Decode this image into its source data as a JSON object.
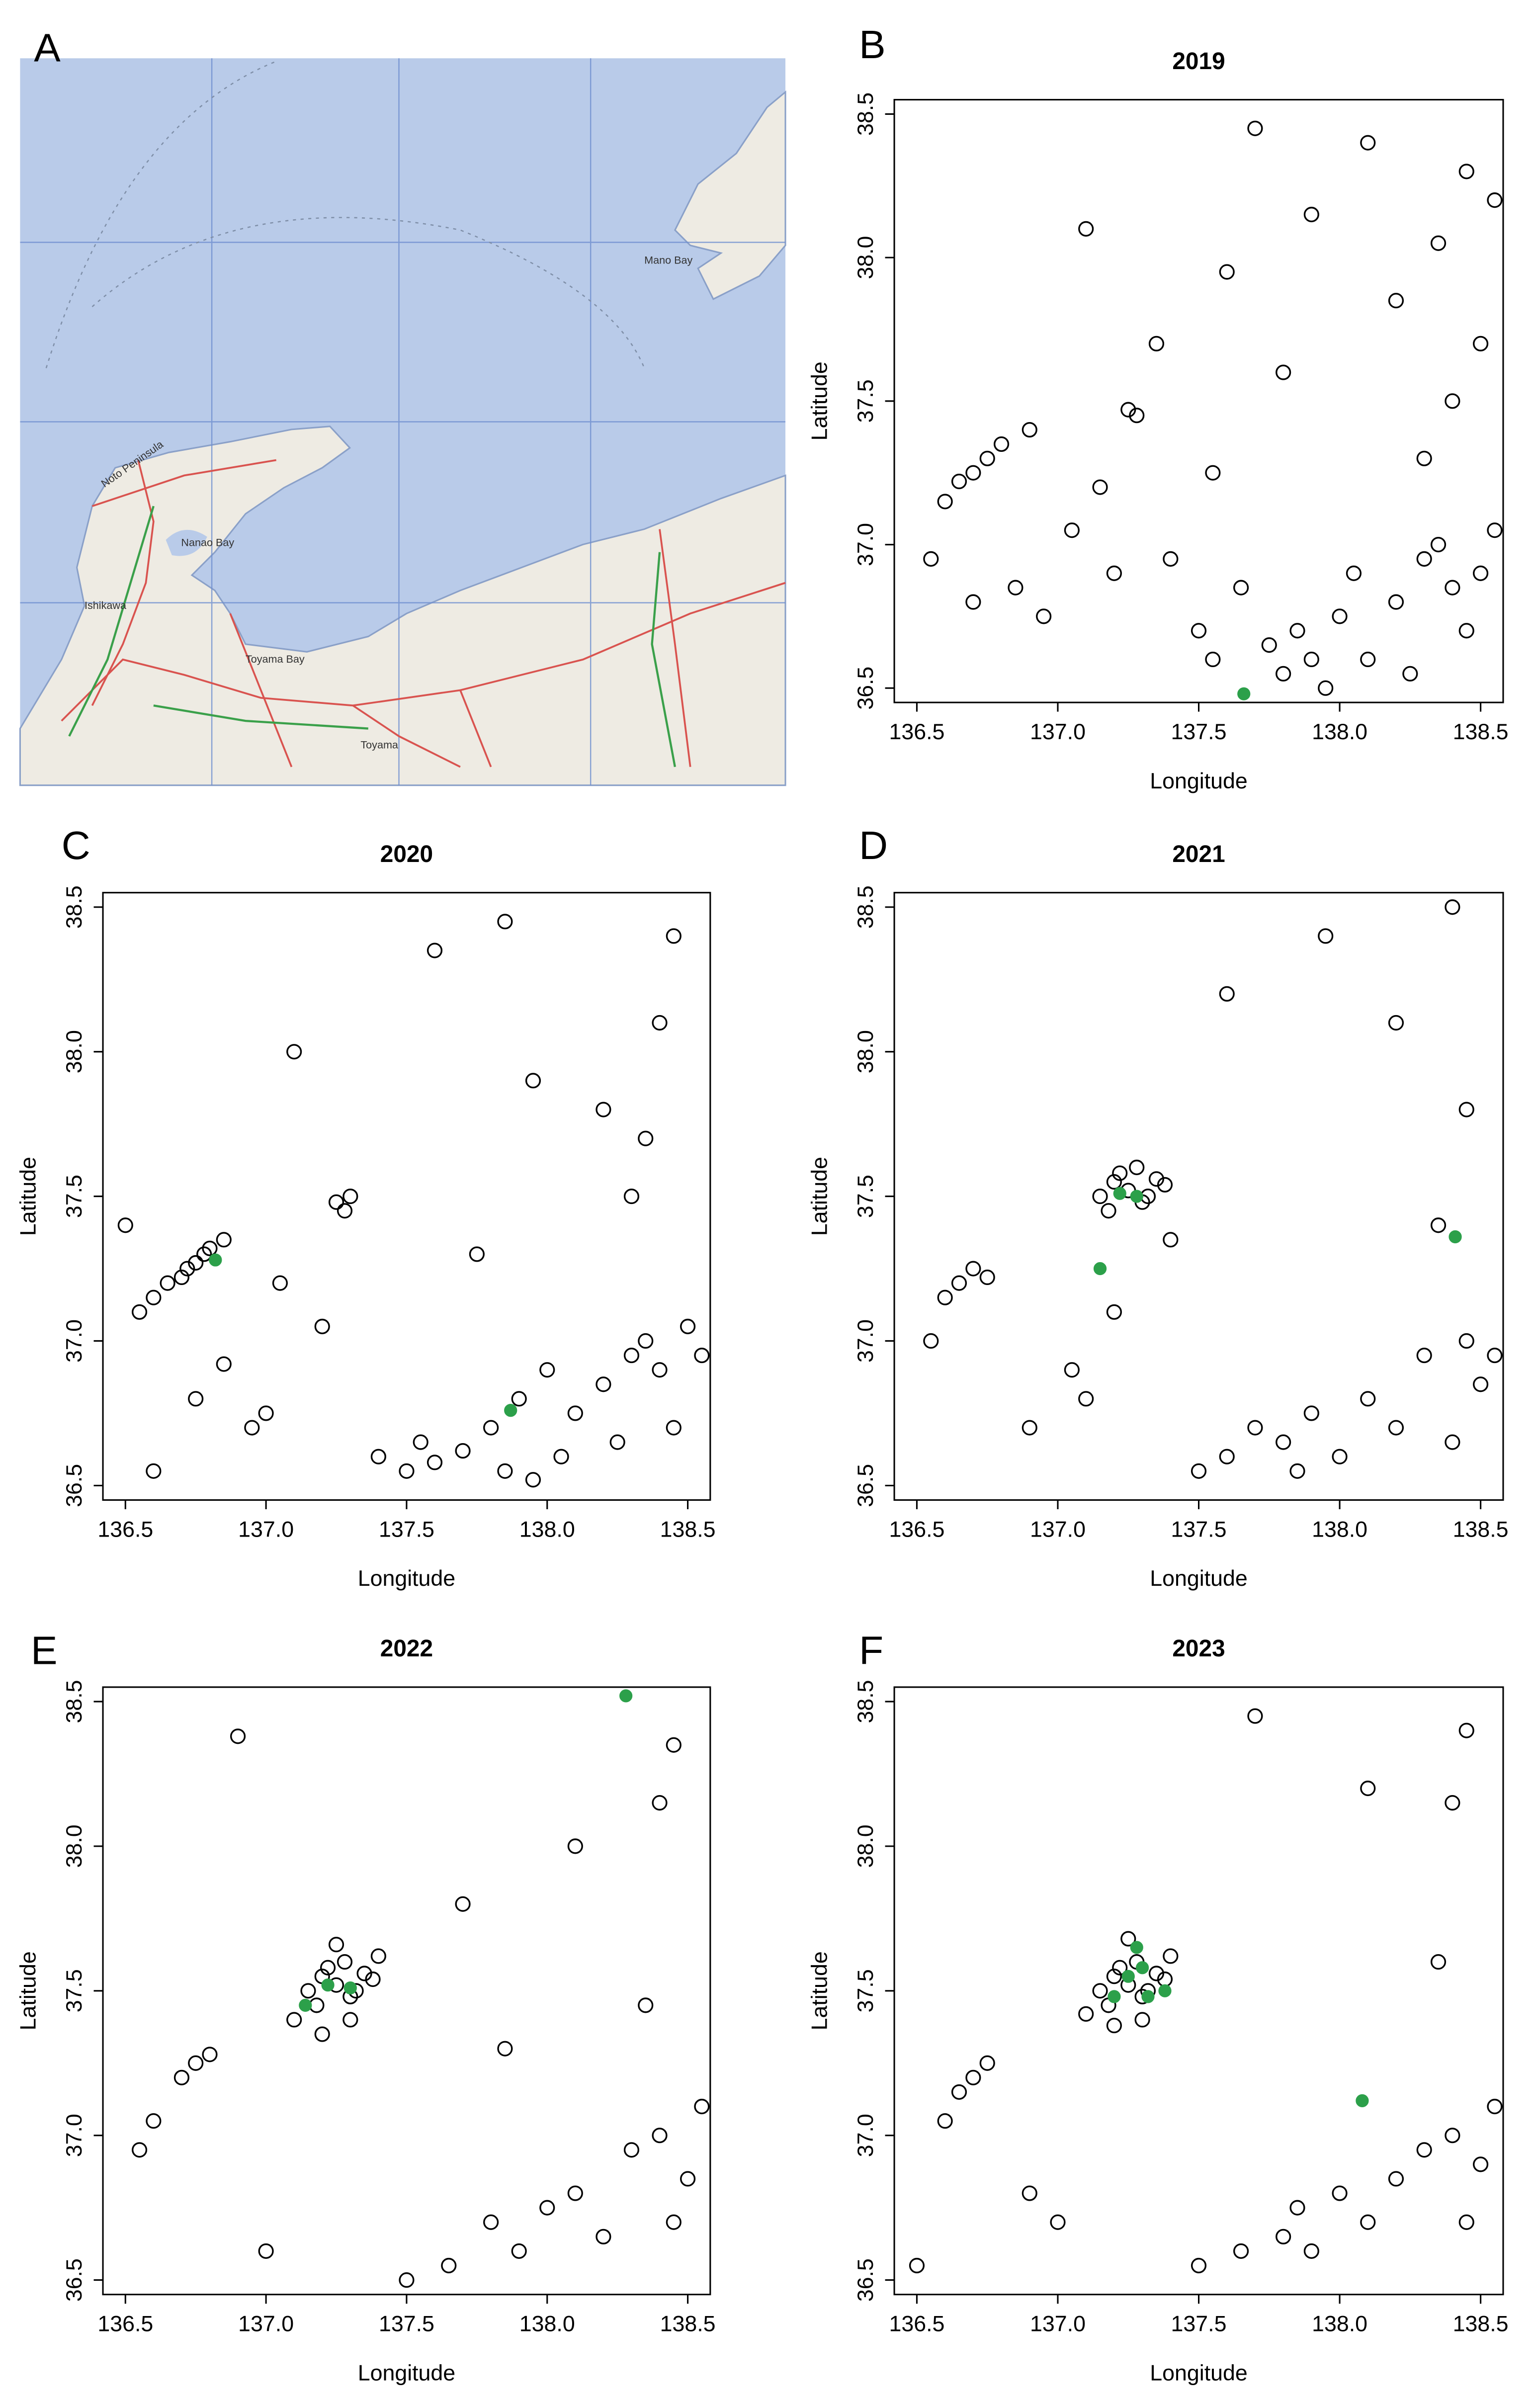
{
  "panel_labels": [
    "A",
    "B",
    "C",
    "D",
    "E",
    "F"
  ],
  "map": {
    "labels": [
      "Noto Peninsula",
      "Nanao Bay",
      "Ishikawa",
      "Toyama Bay",
      "Toyama",
      "Mano Bay"
    ]
  },
  "chart_data": [
    {
      "type": "scatter",
      "title": "2019",
      "xlabel": "Longitude",
      "ylabel": "Latitude",
      "xlim": [
        136.42,
        138.58
      ],
      "ylim": [
        36.45,
        38.55
      ],
      "xticks": [
        136.5,
        {
          "value": 137,
          "label": "137.0"
        },
        137.5,
        {
          "value": 138,
          "label": "138.0"
        },
        138.5
      ],
      "yticks": [
        36.5,
        {
          "value": 37,
          "label": "37.0"
        },
        37.5,
        {
          "value": 38,
          "label": "38.0"
        },
        38.5
      ],
      "series": [
        {
          "color": "#000000",
          "marker": "open",
          "x": [
            136.6,
            136.65,
            136.7,
            136.75,
            136.8,
            136.55,
            136.7,
            136.85,
            136.95,
            137.05,
            137.15,
            137.25,
            137.28,
            137.35,
            137.2,
            137.4,
            137.5,
            137.55,
            137.65,
            137.75,
            137.8,
            137.85,
            137.9,
            137.95,
            138.0,
            138.05,
            138.1,
            138.2,
            138.25,
            138.3,
            138.35,
            138.4,
            138.45,
            138.5,
            138.55,
            138.3,
            138.4,
            138.5,
            138.2,
            138.35,
            138.45,
            138.55,
            138.1,
            137.9,
            137.7,
            137.6,
            137.8,
            137.55,
            136.9,
            137.1
          ],
          "values": [
            37.15,
            37.22,
            37.25,
            37.3,
            37.35,
            36.95,
            36.8,
            36.85,
            36.75,
            37.05,
            37.2,
            37.47,
            37.45,
            37.7,
            36.9,
            36.95,
            36.7,
            36.6,
            36.85,
            36.65,
            36.55,
            36.7,
            36.6,
            36.5,
            36.75,
            36.9,
            36.6,
            36.8,
            36.55,
            36.95,
            37.0,
            36.85,
            36.7,
            36.9,
            37.05,
            37.3,
            37.5,
            37.7,
            37.85,
            38.05,
            38.3,
            38.2,
            38.4,
            38.15,
            38.45,
            37.95,
            37.6,
            37.25,
            37.4,
            38.1
          ]
        },
        {
          "color": "#2ca04a",
          "marker": "filled",
          "x": [
            137.66
          ],
          "values": [
            36.48
          ]
        }
      ]
    },
    {
      "type": "scatter",
      "title": "2020",
      "xlabel": "Longitude",
      "ylabel": "Latitude",
      "xlim": [
        136.42,
        138.58
      ],
      "ylim": [
        36.45,
        38.55
      ],
      "xticks": [
        136.5,
        {
          "value": 137,
          "label": "137.0"
        },
        137.5,
        {
          "value": 138,
          "label": "138.0"
        },
        138.5
      ],
      "yticks": [
        36.5,
        {
          "value": 37,
          "label": "37.0"
        },
        37.5,
        {
          "value": 38,
          "label": "38.0"
        },
        38.5
      ],
      "series": [
        {
          "color": "#000000",
          "marker": "open",
          "x": [
            136.55,
            136.6,
            136.65,
            136.7,
            136.72,
            136.75,
            136.78,
            136.8,
            136.85,
            136.6,
            136.75,
            136.95,
            137.0,
            137.05,
            137.2,
            137.25,
            137.28,
            137.3,
            137.4,
            137.5,
            137.55,
            137.6,
            137.7,
            137.75,
            137.8,
            137.85,
            137.9,
            137.95,
            138.0,
            138.05,
            138.1,
            138.2,
            138.25,
            138.3,
            138.35,
            138.4,
            138.45,
            138.5,
            138.55,
            138.35,
            138.4,
            138.45,
            138.2,
            137.85,
            137.6,
            137.95,
            138.3,
            136.5,
            137.1,
            136.85
          ],
          "values": [
            37.1,
            37.15,
            37.2,
            37.22,
            37.25,
            37.27,
            37.3,
            37.32,
            37.35,
            36.55,
            36.8,
            36.7,
            36.75,
            37.2,
            37.05,
            37.48,
            37.45,
            37.5,
            36.6,
            36.55,
            36.65,
            36.58,
            36.62,
            37.3,
            36.7,
            36.55,
            36.8,
            36.52,
            36.9,
            36.6,
            36.75,
            36.85,
            36.65,
            36.95,
            37.0,
            36.9,
            36.7,
            37.05,
            36.95,
            37.7,
            38.1,
            38.4,
            37.8,
            38.45,
            38.35,
            37.9,
            37.5,
            37.4,
            38.0,
            36.92
          ]
        },
        {
          "color": "#2ca04a",
          "marker": "filled",
          "x": [
            136.82,
            137.87
          ],
          "values": [
            37.28,
            36.76
          ]
        }
      ]
    },
    {
      "type": "scatter",
      "title": "2021",
      "xlabel": "Longitude",
      "ylabel": "Latitude",
      "xlim": [
        136.42,
        138.58
      ],
      "ylim": [
        36.45,
        38.55
      ],
      "xticks": [
        136.5,
        {
          "value": 137,
          "label": "137.0"
        },
        137.5,
        {
          "value": 138,
          "label": "138.0"
        },
        138.5
      ],
      "yticks": [
        36.5,
        {
          "value": 37,
          "label": "37.0"
        },
        37.5,
        {
          "value": 38,
          "label": "38.0"
        },
        38.5
      ],
      "series": [
        {
          "color": "#000000",
          "marker": "open",
          "x": [
            137.15,
            137.2,
            137.25,
            137.3,
            137.35,
            137.18,
            137.22,
            137.28,
            137.32,
            137.38,
            136.6,
            136.65,
            136.7,
            136.75,
            136.55,
            137.05,
            137.1,
            137.2,
            137.4,
            137.5,
            137.6,
            137.7,
            137.8,
            137.85,
            137.9,
            138.0,
            138.1,
            138.2,
            138.3,
            138.4,
            138.45,
            138.5,
            138.55,
            138.35,
            138.45,
            138.2,
            137.95,
            137.6,
            138.4,
            136.9
          ],
          "values": [
            37.5,
            37.55,
            37.52,
            37.48,
            37.56,
            37.45,
            37.58,
            37.6,
            37.5,
            37.54,
            37.15,
            37.2,
            37.25,
            37.22,
            37.0,
            36.9,
            36.8,
            37.1,
            37.35,
            36.55,
            36.6,
            36.7,
            36.65,
            36.55,
            36.75,
            36.6,
            36.8,
            36.7,
            36.95,
            36.65,
            37.0,
            36.85,
            36.95,
            37.4,
            37.8,
            38.1,
            38.4,
            38.2,
            38.5,
            36.7
          ]
        },
        {
          "color": "#2ca04a",
          "marker": "filled",
          "x": [
            137.22,
            137.28,
            137.15,
            138.41
          ],
          "values": [
            37.51,
            37.5,
            37.25,
            37.36
          ]
        }
      ]
    },
    {
      "type": "scatter",
      "title": "2022",
      "xlabel": "Longitude",
      "ylabel": "Latitude",
      "xlim": [
        136.42,
        138.58
      ],
      "ylim": [
        36.45,
        38.55
      ],
      "xticks": [
        136.5,
        {
          "value": 137,
          "label": "137.0"
        },
        137.5,
        {
          "value": 138,
          "label": "138.0"
        },
        138.5
      ],
      "yticks": [
        36.5,
        {
          "value": 37,
          "label": "37.0"
        },
        37.5,
        {
          "value": 38,
          "label": "38.0"
        },
        38.5
      ],
      "series": [
        {
          "color": "#000000",
          "marker": "open",
          "x": [
            137.15,
            137.2,
            137.25,
            137.3,
            137.35,
            137.18,
            137.22,
            137.28,
            137.32,
            137.38,
            137.1,
            137.4,
            137.25,
            137.3,
            137.2,
            136.7,
            136.75,
            136.8,
            136.6,
            136.55,
            137.0,
            137.5,
            137.65,
            137.8,
            137.85,
            137.9,
            138.0,
            138.1,
            138.2,
            138.3,
            138.4,
            138.45,
            138.5,
            138.55,
            138.35,
            138.4,
            138.1,
            137.7,
            138.45,
            136.9
          ],
          "values": [
            37.5,
            37.55,
            37.52,
            37.48,
            37.56,
            37.45,
            37.58,
            37.6,
            37.5,
            37.54,
            37.4,
            37.62,
            37.66,
            37.4,
            37.35,
            37.2,
            37.25,
            37.28,
            37.05,
            36.95,
            36.6,
            36.5,
            36.55,
            36.7,
            37.3,
            36.6,
            36.75,
            36.8,
            36.65,
            36.95,
            37.0,
            36.7,
            36.85,
            37.1,
            37.45,
            38.15,
            38.0,
            37.8,
            38.35,
            38.38
          ]
        },
        {
          "color": "#2ca04a",
          "marker": "filled",
          "x": [
            137.22,
            137.3,
            137.14,
            138.28
          ],
          "values": [
            37.52,
            37.51,
            37.45,
            38.52
          ]
        }
      ]
    },
    {
      "type": "scatter",
      "title": "2023",
      "xlabel": "Longitude",
      "ylabel": "Latitude",
      "xlim": [
        136.42,
        138.58
      ],
      "ylim": [
        36.45,
        38.55
      ],
      "xticks": [
        136.5,
        {
          "value": 137,
          "label": "137.0"
        },
        137.5,
        {
          "value": 138,
          "label": "138.0"
        },
        138.5
      ],
      "yticks": [
        36.5,
        {
          "value": 37,
          "label": "37.0"
        },
        37.5,
        {
          "value": 38,
          "label": "38.0"
        },
        38.5
      ],
      "series": [
        {
          "color": "#000000",
          "marker": "open",
          "x": [
            137.15,
            137.2,
            137.25,
            137.3,
            137.35,
            137.18,
            137.22,
            137.28,
            137.32,
            137.38,
            137.1,
            137.4,
            137.25,
            137.3,
            137.2,
            136.7,
            136.75,
            136.65,
            136.6,
            136.5,
            137.0,
            137.5,
            137.65,
            137.8,
            137.85,
            137.9,
            138.0,
            138.1,
            138.2,
            138.3,
            138.4,
            138.45,
            138.5,
            138.55,
            138.35,
            138.4,
            138.1,
            137.7,
            138.45,
            136.9
          ],
          "values": [
            37.5,
            37.55,
            37.52,
            37.48,
            37.56,
            37.45,
            37.58,
            37.6,
            37.5,
            37.54,
            37.42,
            37.62,
            37.68,
            37.4,
            37.38,
            37.2,
            37.25,
            37.15,
            37.05,
            36.55,
            36.7,
            36.55,
            36.6,
            36.65,
            36.75,
            36.6,
            36.8,
            36.7,
            36.85,
            36.95,
            37.0,
            36.7,
            36.9,
            37.1,
            37.6,
            38.15,
            38.2,
            38.45,
            38.4,
            36.8
          ]
        },
        {
          "color": "#2ca04a",
          "marker": "filled",
          "x": [
            137.25,
            137.3,
            137.28,
            137.2,
            137.32,
            137.38,
            138.08
          ],
          "values": [
            37.55,
            37.58,
            37.65,
            37.48,
            37.48,
            37.5,
            37.12
          ]
        }
      ]
    }
  ]
}
